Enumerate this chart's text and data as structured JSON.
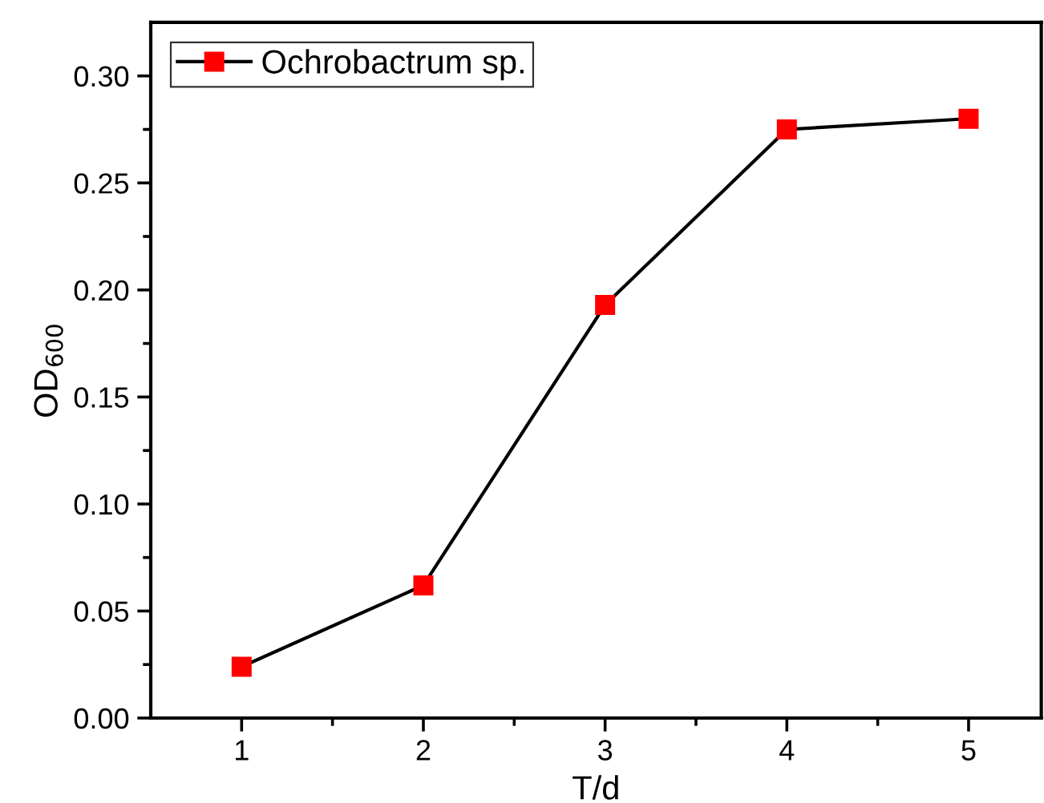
{
  "chart_data": {
    "type": "line",
    "xlabel": "T/d",
    "ylabel": "OD$_{600}$",
    "x": [
      1,
      2,
      3,
      4,
      5
    ],
    "series": [
      {
        "name": "Ochrobactrum sp.",
        "color": "#ff0000",
        "values": [
          0.024,
          0.062,
          0.193,
          0.275,
          0.28
        ]
      }
    ],
    "xlim": [
      0.5,
      5.4
    ],
    "xticks": [
      1,
      {
        "value": 1.5,
        "label": null
      },
      2,
      {
        "value": 2.5,
        "label": null
      },
      3,
      {
        "value": 3.5,
        "label": null
      },
      4,
      {
        "value": 4.5,
        "label": null
      },
      5
    ],
    "ylim": [
      0,
      0.325
    ],
    "yticks": [
      {
        "value": 0,
        "label": "0.00"
      },
      {
        "value": 0.025,
        "label": null
      },
      {
        "value": 0.05,
        "label": "0.05"
      },
      {
        "value": 0.075,
        "label": null
      },
      {
        "value": 0.1,
        "label": "0.10"
      },
      {
        "value": 0.125,
        "label": null
      },
      {
        "value": 0.15,
        "label": "0.15"
      },
      {
        "value": 0.175,
        "label": null
      },
      {
        "value": 0.2,
        "label": "0.20"
      },
      {
        "value": 0.225,
        "label": null
      },
      {
        "value": 0.25,
        "label": "0.25"
      },
      {
        "value": 0.275,
        "label": null
      },
      {
        "value": 0.3,
        "label": "0.30"
      }
    ],
    "marker": "square",
    "line_style": "solid",
    "grid": false,
    "legend": "top left"
  }
}
